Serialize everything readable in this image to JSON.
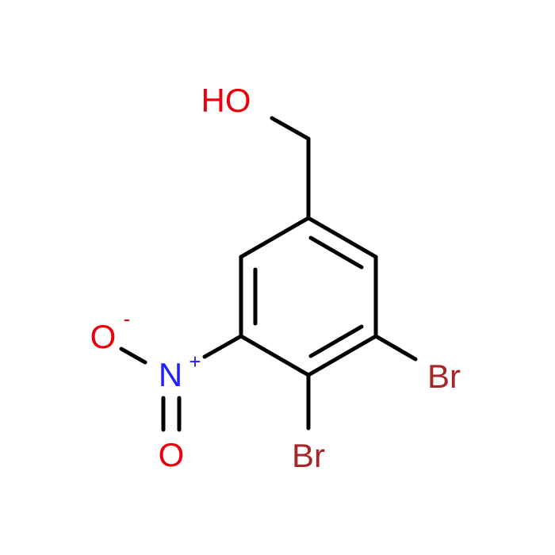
{
  "atoms": {
    "hydroxyl": "HO",
    "oxide": "O",
    "oxide_charge": "-",
    "nitrogen": "N",
    "nitrogen_charge": "+",
    "oxo": "O",
    "bromine_right": "Br",
    "bromine_bottom": "Br"
  }
}
